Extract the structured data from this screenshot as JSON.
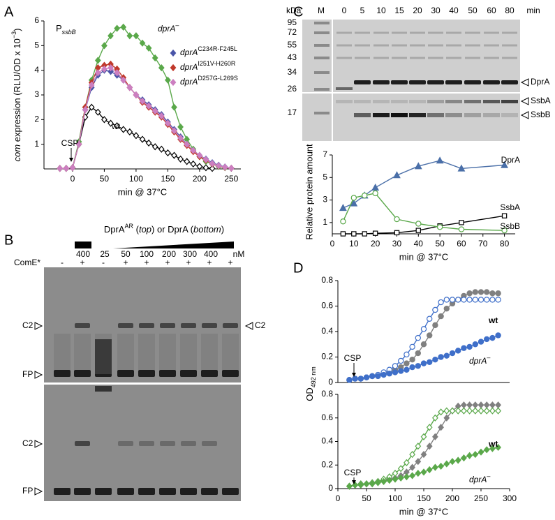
{
  "chart_data": [
    {
      "type": "line",
      "panel": "A",
      "title": [
        "P",
        "ssbB"
      ],
      "ylabel": [
        "com",
        " expression (RLU/OD x 10",
        "−3",
        ")"
      ],
      "xlabel": "min @ 37°C",
      "annotation": "CSP",
      "x": [
        -20,
        -10,
        0,
        10,
        20,
        30,
        40,
        50,
        60,
        70,
        80,
        90,
        100,
        110,
        120,
        130,
        140,
        150,
        160,
        170,
        180,
        190,
        200,
        210,
        220,
        230,
        240,
        250
      ],
      "xlim": [
        -45,
        265
      ],
      "ylim": [
        0,
        6
      ],
      "xticks": [
        0,
        50,
        100,
        150,
        200,
        250
      ],
      "yticks": [
        1,
        2,
        3,
        4,
        5,
        6
      ],
      "series": [
        {
          "name": "wt",
          "color": "#000000",
          "marker": "diamond",
          "filled": false,
          "values": [
            0.02,
            0.02,
            0.05,
            1.0,
            2.1,
            2.5,
            2.3,
            2.0,
            1.85,
            1.75,
            1.6,
            1.5,
            1.35,
            1.2,
            1.05,
            0.9,
            0.8,
            0.65,
            0.55,
            0.4,
            0.3,
            0.2,
            0.1,
            0.05,
            0.02,
            null,
            null,
            null
          ]
        },
        {
          "name": "dprA",
          "name_sup": "–",
          "color": "#5aa84a",
          "marker": "diamond",
          "filled": true,
          "values": [
            0.02,
            0.02,
            0.05,
            1.1,
            2.5,
            3.6,
            4.4,
            5.0,
            5.4,
            5.7,
            5.75,
            5.4,
            5.4,
            5.1,
            4.9,
            4.5,
            4.1,
            3.6,
            2.5,
            1.7,
            1.2,
            0.8,
            0.5,
            0.3,
            0.2,
            0.1,
            0.05,
            null
          ]
        },
        {
          "name": "dprA",
          "name_sup": "C234R-F245L",
          "color": "#4a55a8",
          "marker": "diamond",
          "filled": true,
          "values": [
            0.02,
            0.02,
            0.05,
            1.0,
            2.4,
            3.3,
            3.8,
            4.0,
            3.95,
            3.8,
            3.6,
            3.3,
            3.0,
            2.8,
            2.6,
            2.4,
            2.2,
            1.9,
            1.6,
            1.3,
            1.0,
            0.75,
            0.55,
            0.4,
            0.25,
            0.15,
            0.08,
            0.03
          ]
        },
        {
          "name": "dprA",
          "name_sup": "I251V-H260R",
          "color": "#c0392b",
          "marker": "diamond",
          "filled": true,
          "values": [
            0.02,
            0.02,
            0.05,
            1.0,
            2.5,
            3.5,
            4.1,
            4.2,
            4.25,
            4.05,
            3.7,
            3.3,
            3.0,
            2.7,
            2.5,
            2.3,
            2.1,
            1.8,
            1.5,
            1.2,
            0.95,
            0.7,
            0.5,
            0.35,
            0.2,
            0.12,
            0.06,
            0.03
          ]
        },
        {
          "name": "dprA",
          "name_sup": "D257G-L269S",
          "color": "#cc7fc0",
          "marker": "diamond",
          "filled": true,
          "values": [
            0.02,
            0.02,
            0.05,
            1.0,
            2.4,
            3.4,
            3.9,
            4.05,
            4.1,
            3.9,
            3.6,
            3.3,
            3.0,
            2.75,
            2.55,
            2.35,
            2.15,
            1.85,
            1.55,
            1.25,
            1.0,
            0.75,
            0.55,
            0.38,
            0.22,
            0.13,
            0.07,
            0.03
          ]
        }
      ]
    },
    {
      "type": "line",
      "ylabel": "Relative protein amount",
      "xlabel": "min @ 37°C",
      "x": [
        5,
        10,
        15,
        20,
        30,
        40,
        50,
        60,
        80
      ],
      "xlim": [
        0,
        85
      ],
      "ylim": [
        0,
        7
      ],
      "xticks": [
        0,
        10,
        20,
        30,
        40,
        50,
        60,
        70,
        80
      ],
      "yticks": [
        1,
        3,
        5,
        7
      ],
      "series": [
        {
          "name": "DprA",
          "color": "#4a6fa8",
          "marker": "triangle",
          "filled": true,
          "values": [
            2.3,
            2.7,
            3.4,
            4.1,
            5.2,
            6.0,
            6.5,
            5.8,
            6.1
          ]
        },
        {
          "name": "SsbA",
          "color": "#000000",
          "marker": "square",
          "filled": false,
          "values": [
            0,
            0,
            0,
            0.05,
            0.1,
            0.3,
            0.7,
            1.0,
            1.6
          ]
        },
        {
          "name": "SsbB",
          "color": "#5aa84a",
          "marker": "circle",
          "filled": false,
          "values": [
            1.1,
            3.2,
            3.4,
            3.6,
            1.3,
            0.9,
            0.6,
            0.4,
            0.3
          ]
        }
      ]
    },
    {
      "type": "line",
      "panel": "D",
      "ylabel": [
        "OD",
        "492 nm"
      ],
      "annotation": "CSP",
      "x": [
        20,
        30,
        40,
        50,
        60,
        70,
        80,
        90,
        100,
        110,
        120,
        130,
        140,
        150,
        160,
        170,
        180,
        190,
        200,
        210,
        220,
        230,
        240,
        250,
        260,
        270,
        280
      ],
      "xlim": [
        0,
        300
      ],
      "ylim": [
        0,
        0.8
      ],
      "yticks": [
        0,
        0.2,
        0.4,
        0.6,
        0.8
      ],
      "series": [
        {
          "name": "wt",
          "color": "#808080",
          "marker": "circle",
          "filled": true,
          "values": [
            0.02,
            0.03,
            0.03,
            0.04,
            0.05,
            0.06,
            0.07,
            0.08,
            0.1,
            0.12,
            0.15,
            0.18,
            0.23,
            0.3,
            0.37,
            0.45,
            0.52,
            0.58,
            0.62,
            0.65,
            0.68,
            0.7,
            0.71,
            0.71,
            0.71,
            0.7,
            0.7
          ]
        },
        {
          "color": "#3f6fc9",
          "marker": "circle",
          "filled": false,
          "values": [
            0.02,
            0.03,
            0.03,
            0.04,
            0.05,
            0.06,
            0.08,
            0.1,
            0.13,
            0.17,
            0.22,
            0.28,
            0.35,
            0.42,
            0.5,
            0.57,
            0.63,
            0.65,
            0.65,
            0.65,
            0.65,
            0.65,
            0.65,
            0.65,
            0.65,
            0.65,
            0.65
          ]
        },
        {
          "name": "dprA",
          "name_sup": "–",
          "color": "#3f6fc9",
          "marker": "circle",
          "filled": true,
          "values": [
            0.02,
            0.03,
            0.03,
            0.04,
            0.05,
            0.05,
            0.06,
            0.07,
            0.08,
            0.09,
            0.1,
            0.12,
            0.13,
            0.15,
            0.16,
            0.18,
            0.2,
            0.21,
            0.23,
            0.25,
            0.27,
            0.28,
            0.3,
            0.32,
            0.34,
            0.35,
            0.37
          ]
        }
      ]
    },
    {
      "type": "line",
      "xlabel": "min @ 37°C",
      "annotation": "CSP",
      "x": [
        20,
        30,
        40,
        50,
        60,
        70,
        80,
        90,
        100,
        110,
        120,
        130,
        140,
        150,
        160,
        170,
        180,
        190,
        200,
        210,
        220,
        230,
        240,
        250,
        260,
        270,
        280
      ],
      "xlim": [
        0,
        300
      ],
      "ylim": [
        0,
        0.8
      ],
      "xticks": [
        0,
        50,
        100,
        150,
        200,
        250,
        300
      ],
      "yticks": [
        0,
        0.2,
        0.4,
        0.6,
        0.8
      ],
      "series": [
        {
          "name": "wt",
          "color": "#808080",
          "marker": "diamond",
          "filled": true,
          "values": [
            0.02,
            0.03,
            0.04,
            0.04,
            0.05,
            0.06,
            0.07,
            0.08,
            0.09,
            0.11,
            0.14,
            0.18,
            0.23,
            0.29,
            0.36,
            0.44,
            0.52,
            0.6,
            0.66,
            0.7,
            0.71,
            0.71,
            0.71,
            0.71,
            0.71,
            0.71,
            0.71
          ]
        },
        {
          "color": "#5aa84a",
          "marker": "diamond",
          "filled": false,
          "values": [
            0.02,
            0.03,
            0.04,
            0.04,
            0.05,
            0.06,
            0.08,
            0.1,
            0.13,
            0.17,
            0.22,
            0.29,
            0.36,
            0.44,
            0.52,
            0.6,
            0.65,
            0.66,
            0.66,
            0.66,
            0.66,
            0.66,
            0.66,
            0.66,
            0.66,
            0.66,
            0.66
          ]
        },
        {
          "name": "dprA",
          "name_sup": "–",
          "color": "#5aa84a",
          "marker": "diamond",
          "filled": true,
          "values": [
            0.02,
            0.03,
            0.03,
            0.04,
            0.04,
            0.05,
            0.06,
            0.07,
            0.08,
            0.09,
            0.1,
            0.11,
            0.13,
            0.14,
            0.16,
            0.18,
            0.19,
            0.21,
            0.23,
            0.24,
            0.26,
            0.28,
            0.29,
            0.31,
            0.33,
            0.34,
            0.35
          ]
        }
      ]
    }
  ],
  "gels": {
    "B": {
      "panel": "B",
      "header": [
        "DprA",
        "AR",
        " (",
        "top",
        ") or DprA (",
        "bottom",
        ")"
      ],
      "ar_amount": "400",
      "concentrations": [
        "25",
        "50",
        "100",
        "200",
        "300",
        "400"
      ],
      "unit": "nM",
      "lane_row": "ComE*",
      "lanes": [
        "-",
        "+",
        "-",
        "+",
        "+",
        "+",
        "+",
        "+",
        "+"
      ],
      "top_left": [
        "C2",
        "FP"
      ],
      "top_right": "C2",
      "bottom_left": [
        "C2",
        "FP"
      ]
    },
    "C": {
      "panel": "C",
      "kda": "kDa",
      "marker_lane": "M",
      "lanes": [
        "0",
        "5",
        "10",
        "15",
        "20",
        "30",
        "40",
        "50",
        "60",
        "80"
      ],
      "unit": "min",
      "markers": [
        "95",
        "72",
        "55",
        "43",
        "34",
        "26",
        "17"
      ],
      "bands": [
        "DprA",
        "SsbA",
        "SsbB"
      ]
    }
  }
}
